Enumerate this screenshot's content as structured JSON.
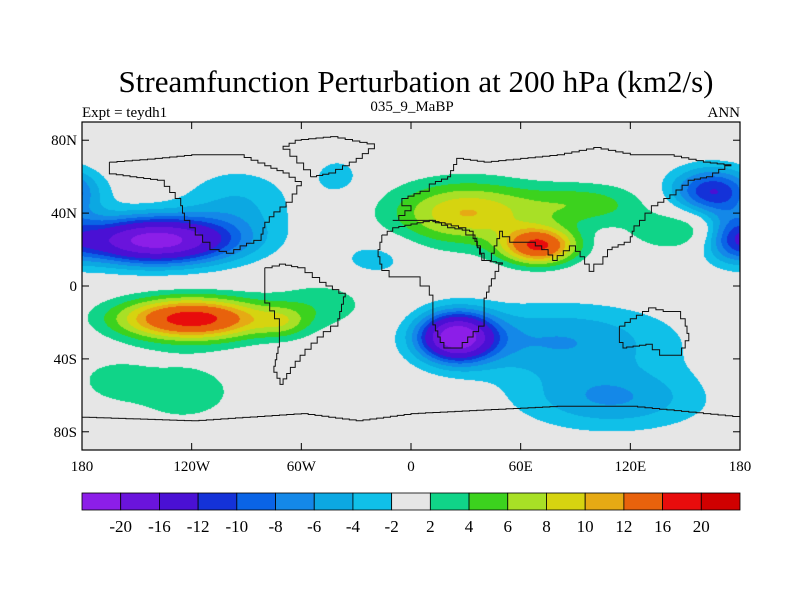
{
  "chart_data": {
    "type": "contour-map",
    "title": "Streamfunction Perturbation at 200 hPa (km2/s)",
    "left_label": "Expt = teydh1",
    "center_label": "035_9_MaBP",
    "right_label": "ANN",
    "x_ticks": [
      {
        "lon": -180,
        "label": "180"
      },
      {
        "lon": -120,
        "label": "120W"
      },
      {
        "lon": -60,
        "label": "60W"
      },
      {
        "lon": 0,
        "label": "0"
      },
      {
        "lon": 60,
        "label": "60E"
      },
      {
        "lon": 120,
        "label": "120E"
      },
      {
        "lon": 180,
        "label": "180"
      }
    ],
    "y_ticks": [
      {
        "lat": 80,
        "label": "80N"
      },
      {
        "lat": 40,
        "label": "40N"
      },
      {
        "lat": 0,
        "label": "0"
      },
      {
        "lat": -40,
        "label": "40S"
      },
      {
        "lat": -80,
        "label": "80S"
      }
    ],
    "xlim": [
      -180,
      180
    ],
    "ylim": [
      -90,
      90
    ],
    "levels": [
      -20,
      -16,
      -12,
      -10,
      -8,
      -6,
      -4,
      -2,
      2,
      4,
      6,
      8,
      10,
      12,
      16,
      20
    ],
    "level_labels": [
      "-20",
      "-16",
      "-12",
      "-10",
      "-8",
      "-6",
      "-4",
      "-2",
      "2",
      "4",
      "6",
      "8",
      "10",
      "12",
      "16",
      "20"
    ],
    "colors": [
      "#8c1ee8",
      "#6a14dc",
      "#4a10d4",
      "#1432d8",
      "#0a64e6",
      "#1488e8",
      "#0ca8e2",
      "#10c0e8",
      "#e6e6e6",
      "#10d488",
      "#3cd21e",
      "#a8e026",
      "#d6d410",
      "#e6aa14",
      "#e8620c",
      "#e80c0c",
      "#d00000"
    ],
    "anomalies": [
      {
        "lon": -140,
        "lat": 25,
        "value": -22,
        "slon": 30,
        "slat": 9
      },
      {
        "lon": -95,
        "lat": 45,
        "value": -4,
        "slon": 22,
        "slat": 14
      },
      {
        "lon": -120,
        "lat": -18,
        "value": 18,
        "slon": 28,
        "slat": 8
      },
      {
        "lon": -70,
        "lat": -20,
        "value": 4,
        "slon": 10,
        "slat": 6
      },
      {
        "lon": -125,
        "lat": -58,
        "value": 3,
        "slon": 25,
        "slat": 14
      },
      {
        "lon": 30,
        "lat": 40,
        "value": 10,
        "slon": 28,
        "slat": 12
      },
      {
        "lon": 70,
        "lat": 22,
        "value": 16,
        "slon": 14,
        "slat": 7
      },
      {
        "lon": 95,
        "lat": 45,
        "value": 5,
        "slon": 24,
        "slat": 8
      },
      {
        "lon": 25,
        "lat": -28,
        "value": -22,
        "slon": 14,
        "slat": 9
      },
      {
        "lon": 80,
        "lat": -30,
        "value": -6,
        "slon": 45,
        "slat": 14
      },
      {
        "lon": 110,
        "lat": -62,
        "value": -6,
        "slon": 35,
        "slat": 12
      },
      {
        "lon": 165,
        "lat": 52,
        "value": -12,
        "slon": 16,
        "slat": 9
      },
      {
        "lon": 175,
        "lat": 28,
        "value": -6,
        "slon": 10,
        "slat": 10
      },
      {
        "lon": 150,
        "lat": 30,
        "value": 5,
        "slon": 20,
        "slat": 8
      },
      {
        "lon": -165,
        "lat": -52,
        "value": 3,
        "slon": 14,
        "slat": 8
      },
      {
        "lon": -20,
        "lat": 15,
        "value": -3,
        "slon": 15,
        "slat": 8
      },
      {
        "lon": -48,
        "lat": -10,
        "value": 3,
        "slon": 20,
        "slat": 10
      },
      {
        "lon": -40,
        "lat": 60,
        "value": -3,
        "slon": 10,
        "slat": 8
      }
    ]
  }
}
